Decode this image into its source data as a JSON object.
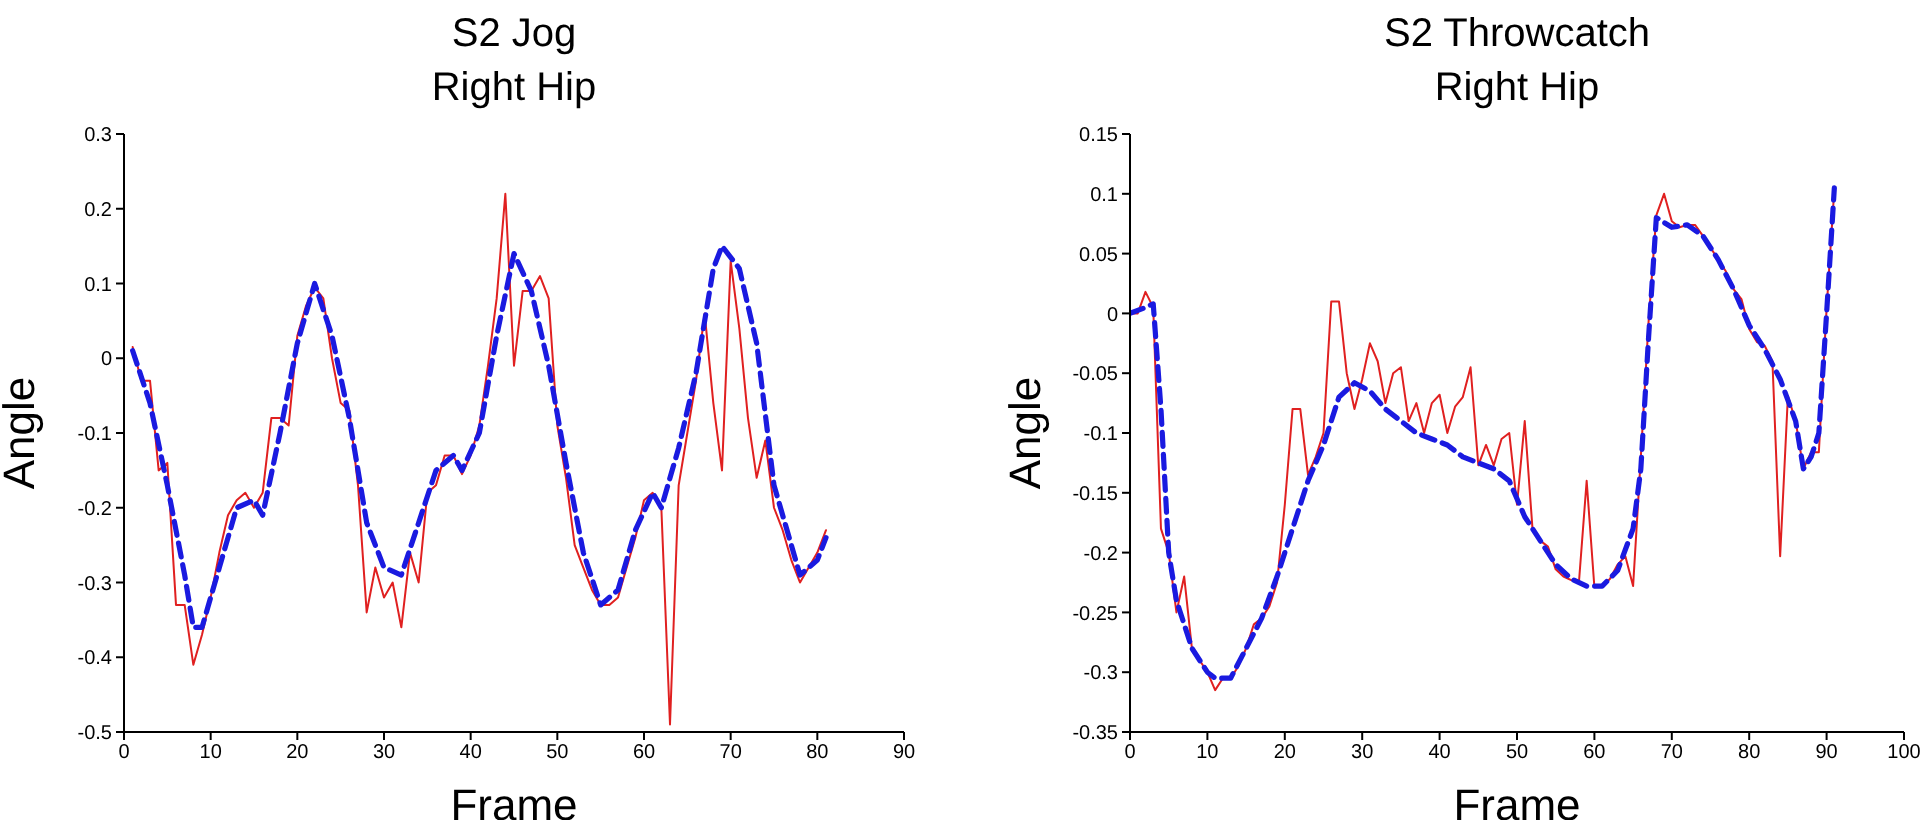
{
  "chart_data": [
    {
      "type": "line",
      "title": "S2 Jog",
      "subtitle": "Right Hip",
      "xlabel": "Frame",
      "ylabel": "Angle",
      "xlim": [
        0,
        90
      ],
      "xticks": [
        0,
        10,
        20,
        30,
        40,
        50,
        60,
        70,
        80,
        90
      ],
      "ylim": [
        -0.5,
        0.3
      ],
      "yticks": [
        -0.5,
        -0.4,
        -0.3,
        -0.2,
        -0.1,
        0,
        0.1,
        0.2,
        0.3
      ],
      "marker": "none",
      "series": [
        {
          "color": "#e02020",
          "line_style": "solid",
          "x": [
            1,
            2,
            3,
            4,
            5,
            6,
            7,
            8,
            9,
            10,
            11,
            12,
            13,
            14,
            15,
            16,
            17,
            18,
            19,
            20,
            21,
            22,
            23,
            24,
            25,
            26,
            27,
            28,
            29,
            30,
            31,
            32,
            33,
            34,
            35,
            36,
            37,
            38,
            39,
            40,
            41,
            42,
            43,
            44,
            45,
            46,
            47,
            48,
            49,
            50,
            51,
            52,
            53,
            54,
            55,
            56,
            57,
            58,
            59,
            60,
            61,
            62,
            63,
            64,
            65,
            66,
            67,
            68,
            69,
            70,
            71,
            72,
            73,
            74,
            75,
            76,
            77,
            78,
            79,
            80,
            81
          ],
          "values": [
            0.015,
            -0.03,
            -0.03,
            -0.15,
            -0.14,
            -0.33,
            -0.33,
            -0.41,
            -0.37,
            -0.32,
            -0.26,
            -0.21,
            -0.19,
            -0.18,
            -0.2,
            -0.18,
            -0.08,
            -0.08,
            -0.09,
            0.03,
            0.07,
            0.095,
            0.08,
            0.0,
            -0.06,
            -0.07,
            -0.17,
            -0.34,
            -0.28,
            -0.32,
            -0.3,
            -0.36,
            -0.26,
            -0.3,
            -0.18,
            -0.17,
            -0.13,
            -0.13,
            -0.155,
            -0.13,
            -0.09,
            -0.01,
            0.08,
            0.22,
            -0.01,
            0.09,
            0.09,
            0.11,
            0.08,
            -0.09,
            -0.16,
            -0.25,
            -0.28,
            -0.31,
            -0.33,
            -0.33,
            -0.32,
            -0.28,
            -0.24,
            -0.19,
            -0.18,
            -0.2,
            -0.49,
            -0.17,
            -0.1,
            -0.03,
            0.06,
            -0.06,
            -0.15,
            0.13,
            0.04,
            -0.08,
            -0.16,
            -0.11,
            -0.2,
            -0.23,
            -0.27,
            -0.3,
            -0.28,
            -0.26,
            -0.23
          ]
        },
        {
          "color": "#1a1ae0",
          "line_style": "dashed",
          "x": [
            1,
            3,
            5,
            7,
            8,
            9,
            11,
            13,
            15,
            16,
            18,
            20,
            22,
            24,
            26,
            28,
            30,
            32,
            34,
            36,
            38,
            39,
            41,
            43,
            45,
            47,
            49,
            51,
            53,
            55,
            57,
            59,
            61,
            62,
            64,
            66,
            68,
            69,
            71,
            73,
            75,
            77,
            78,
            80,
            81
          ],
          "values": [
            0.01,
            -0.06,
            -0.17,
            -0.29,
            -0.36,
            -0.36,
            -0.28,
            -0.2,
            -0.19,
            -0.21,
            -0.1,
            0.02,
            0.1,
            0.03,
            -0.08,
            -0.22,
            -0.28,
            -0.29,
            -0.22,
            -0.15,
            -0.13,
            -0.15,
            -0.1,
            0.03,
            0.14,
            0.09,
            -0.01,
            -0.14,
            -0.26,
            -0.33,
            -0.31,
            -0.23,
            -0.18,
            -0.2,
            -0.12,
            -0.02,
            0.12,
            0.15,
            0.12,
            0.02,
            -0.17,
            -0.25,
            -0.29,
            -0.27,
            -0.24
          ]
        }
      ]
    },
    {
      "type": "line",
      "title": "S2 Throwcatch",
      "subtitle": "Right Hip",
      "xlabel": "Frame",
      "ylabel": "Angle",
      "xlim": [
        0,
        100
      ],
      "xticks": [
        0,
        10,
        20,
        30,
        40,
        50,
        60,
        70,
        80,
        90,
        100
      ],
      "ylim": [
        -0.35,
        0.15
      ],
      "yticks": [
        -0.35,
        -0.3,
        -0.25,
        -0.2,
        -0.15,
        -0.1,
        -0.05,
        0,
        0.05,
        0.1,
        0.15
      ],
      "marker": "none",
      "series": [
        {
          "color": "#e02020",
          "line_style": "solid",
          "x": [
            0,
            1,
            2,
            3,
            4,
            5,
            6,
            7,
            8,
            9,
            10,
            11,
            12,
            13,
            14,
            15,
            16,
            17,
            18,
            19,
            20,
            21,
            22,
            23,
            24,
            25,
            26,
            27,
            28,
            29,
            30,
            31,
            32,
            33,
            34,
            35,
            36,
            37,
            38,
            39,
            40,
            41,
            42,
            43,
            44,
            45,
            46,
            47,
            48,
            49,
            50,
            51,
            52,
            53,
            54,
            55,
            56,
            57,
            58,
            59,
            60,
            61,
            62,
            63,
            64,
            65,
            66,
            67,
            68,
            69,
            70,
            71,
            72,
            73,
            74,
            75,
            76,
            77,
            78,
            79,
            80,
            81,
            82,
            83,
            84,
            85,
            86,
            87,
            88,
            89,
            90,
            91
          ],
          "values": [
            0,
            0,
            0.018,
            0.005,
            -0.18,
            -0.2,
            -0.25,
            -0.22,
            -0.28,
            -0.29,
            -0.3,
            -0.315,
            -0.305,
            -0.305,
            -0.295,
            -0.28,
            -0.26,
            -0.255,
            -0.245,
            -0.225,
            -0.16,
            -0.08,
            -0.08,
            -0.135,
            -0.12,
            -0.1,
            0.01,
            0.01,
            -0.05,
            -0.08,
            -0.055,
            -0.025,
            -0.04,
            -0.075,
            -0.05,
            -0.045,
            -0.09,
            -0.075,
            -0.1,
            -0.075,
            -0.068,
            -0.1,
            -0.078,
            -0.07,
            -0.045,
            -0.127,
            -0.11,
            -0.127,
            -0.105,
            -0.1,
            -0.16,
            -0.09,
            -0.18,
            -0.19,
            -0.195,
            -0.214,
            -0.22,
            -0.223,
            -0.225,
            -0.14,
            -0.229,
            -0.228,
            -0.222,
            -0.21,
            -0.203,
            -0.228,
            -0.12,
            -0.007,
            0.082,
            0.1,
            0.077,
            0.072,
            0.074,
            0.074,
            0.065,
            0.055,
            0.045,
            0.035,
            0.02,
            0.012,
            -0.013,
            -0.024,
            -0.027,
            -0.04,
            -0.203,
            -0.069,
            -0.09,
            -0.13,
            -0.116,
            -0.116,
            0.004,
            0.104
          ]
        },
        {
          "color": "#1a1ae0",
          "line_style": "dashed",
          "x": [
            0,
            2,
            3,
            4,
            5,
            6,
            8,
            10,
            11,
            13,
            15,
            17,
            19,
            21,
            23,
            25,
            27,
            29,
            31,
            33,
            35,
            37,
            39,
            41,
            43,
            45,
            47,
            49,
            51,
            53,
            55,
            57,
            59,
            61,
            63,
            65,
            66,
            67,
            68,
            70,
            72,
            74,
            76,
            78,
            80,
            82,
            84,
            86,
            87,
            88,
            89,
            90,
            91
          ],
          "values": [
            0,
            0.005,
            0.008,
            -0.08,
            -0.2,
            -0.24,
            -0.28,
            -0.3,
            -0.305,
            -0.305,
            -0.28,
            -0.255,
            -0.22,
            -0.18,
            -0.14,
            -0.11,
            -0.07,
            -0.058,
            -0.065,
            -0.08,
            -0.09,
            -0.1,
            -0.105,
            -0.11,
            -0.12,
            -0.125,
            -0.13,
            -0.14,
            -0.17,
            -0.19,
            -0.21,
            -0.222,
            -0.228,
            -0.228,
            -0.215,
            -0.18,
            -0.13,
            -0.02,
            0.08,
            0.072,
            0.074,
            0.065,
            0.045,
            0.02,
            -0.01,
            -0.03,
            -0.055,
            -0.09,
            -0.13,
            -0.12,
            -0.1,
            0.0,
            0.105
          ]
        }
      ]
    }
  ]
}
